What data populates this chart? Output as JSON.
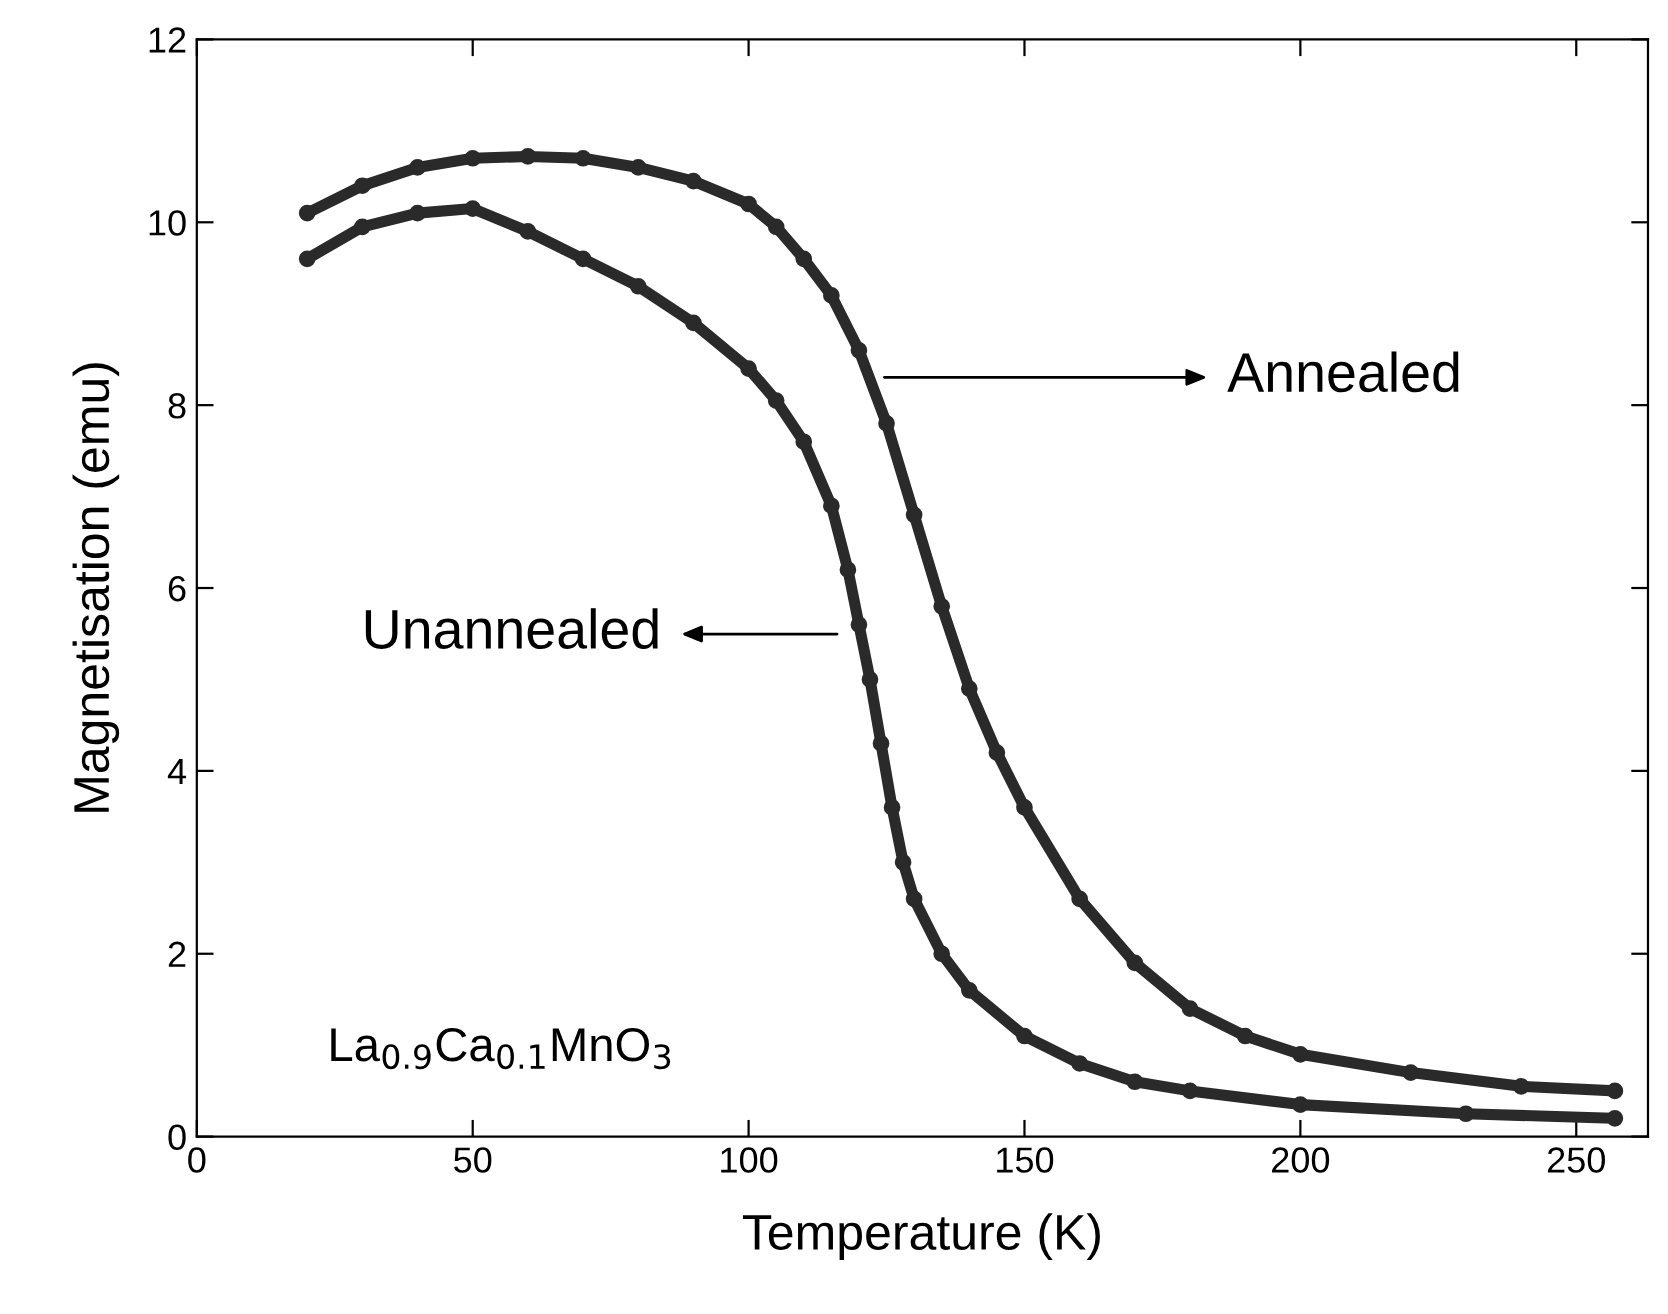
{
  "chart_data": {
    "type": "line",
    "xlabel": "Temperature (K)",
    "ylabel": "Magnetisation (emu)",
    "xlim": [
      0,
      263
    ],
    "ylim": [
      0,
      12
    ],
    "xticks": [
      0,
      50,
      100,
      150,
      200,
      250
    ],
    "yticks": [
      0,
      2,
      4,
      6,
      8,
      10,
      12
    ],
    "grid": false,
    "legend": false,
    "marker": "circle",
    "line_style": "solid",
    "series": [
      {
        "color": "#2a2a2a",
        "x": [
          20,
          30,
          40,
          50,
          60,
          70,
          80,
          90,
          100,
          105,
          110,
          115,
          120,
          125,
          130,
          135,
          140,
          145,
          150,
          160,
          170,
          180,
          190,
          200,
          220,
          240,
          257
        ],
        "values": [
          10.1,
          10.4,
          10.6,
          10.7,
          10.72,
          10.7,
          10.6,
          10.45,
          10.2,
          9.95,
          9.6,
          9.2,
          8.6,
          7.8,
          6.8,
          5.8,
          4.9,
          4.2,
          3.6,
          2.6,
          1.9,
          1.4,
          1.1,
          0.9,
          0.7,
          0.55,
          0.5
        ]
      },
      {
        "color": "#2a2a2a",
        "x": [
          20,
          30,
          40,
          50,
          60,
          70,
          80,
          90,
          100,
          105,
          110,
          115,
          118,
          120,
          122,
          124,
          126,
          128,
          130,
          135,
          140,
          150,
          160,
          170,
          180,
          200,
          230,
          257
        ],
        "values": [
          9.6,
          9.95,
          10.1,
          10.15,
          9.9,
          9.6,
          9.3,
          8.9,
          8.4,
          8.05,
          7.6,
          6.9,
          6.2,
          5.6,
          5.0,
          4.3,
          3.6,
          3.0,
          2.6,
          2.0,
          1.6,
          1.1,
          0.8,
          0.6,
          0.5,
          0.35,
          0.25,
          0.2
        ]
      }
    ],
    "annotations": [
      "Annealed",
      "Unannealed",
      "La$_{0.9}$Ca$_{0.1}$MnO$_{3}$"
    ]
  }
}
